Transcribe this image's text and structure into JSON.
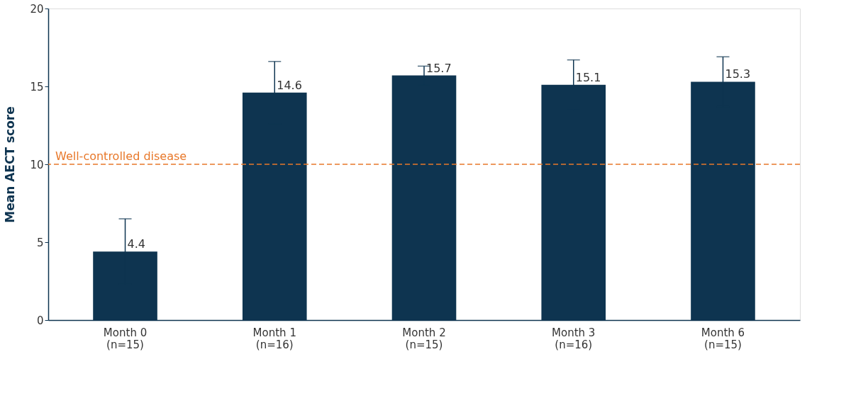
{
  "chart_data": {
    "type": "bar",
    "ylabel": "Mean AECT score",
    "categories": [
      "Month 0\n(n=15)",
      "Month 1\n(n=16)",
      "Month 2\n(n=15)",
      "Month 3\n(n=16)",
      "Month 6\n(n=15)"
    ],
    "values": [
      4.4,
      14.6,
      15.7,
      15.1,
      15.3
    ],
    "errors": [
      2.1,
      2.0,
      0.6,
      1.6,
      1.6
    ],
    "color": "#0e3450",
    "ylim": [
      0,
      20
    ],
    "yticks": [
      0,
      5,
      10,
      15,
      20
    ],
    "ref_lines": [
      {
        "axis": "y",
        "value": 10,
        "label": "Well-controlled disease",
        "color": "#e8782a",
        "line_style": "dashed"
      }
    ],
    "data_labels": true,
    "grid": false
  }
}
